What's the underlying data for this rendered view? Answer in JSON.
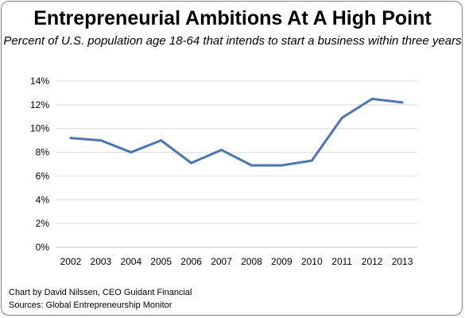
{
  "chart_data": {
    "type": "line",
    "title": "Entrepreneurial Ambitions At A High Point",
    "subtitle": "Percent of U.S. population age 18-64 that intends to start a business within three years",
    "xlabel": "",
    "ylabel": "",
    "categories": [
      "2002",
      "2003",
      "2004",
      "2005",
      "2006",
      "2007",
      "2008",
      "2009",
      "2010",
      "2011",
      "2012",
      "2013"
    ],
    "series": [
      {
        "values": [
          9.2,
          9.0,
          8.0,
          9.0,
          7.1,
          8.2,
          6.9,
          6.9,
          7.3,
          10.9,
          12.5,
          12.2
        ],
        "color": "#4a76b4"
      }
    ],
    "ylim": [
      0,
      14
    ],
    "yticks": [
      0,
      2,
      4,
      6,
      8,
      10,
      12,
      14
    ],
    "ytick_labels": [
      "0%",
      "2%",
      "4%",
      "6%",
      "8%",
      "10%",
      "12%",
      "14%"
    ],
    "grid": true,
    "legend": "none"
  },
  "footer": {
    "credit": "Chart by David Nilssen, CEO Guidant Financial",
    "sources": "Sources: Global Entrepreneurship Monitor"
  },
  "colors": {
    "line": "#4a76b4",
    "grid": "#d9d9d9",
    "border": "#7f7f7f"
  }
}
